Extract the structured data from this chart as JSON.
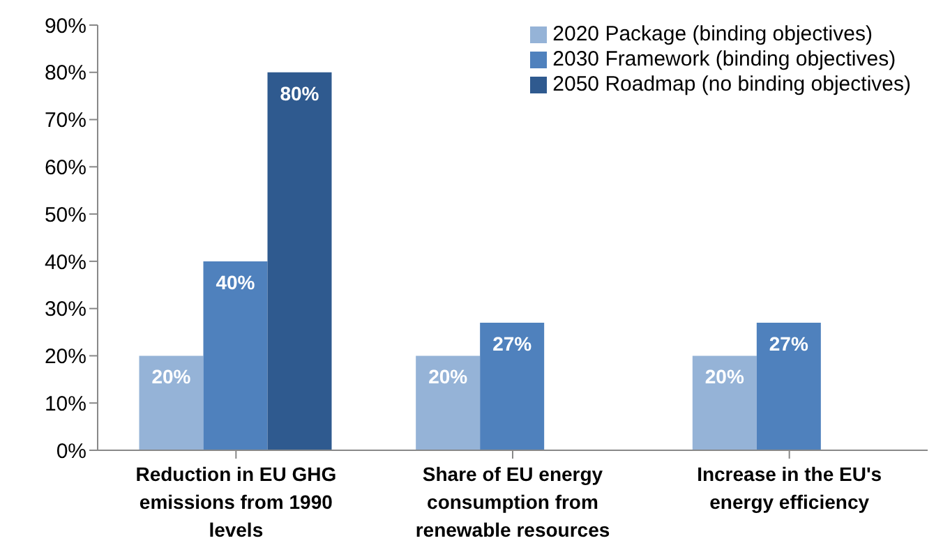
{
  "chart_data": {
    "type": "bar",
    "categories": [
      "Reduction in EU GHG emissions from 1990 levels",
      "Share of EU energy consumption from renewable resources",
      "Increase in the EU's energy efficiency"
    ],
    "series": [
      {
        "name": "2020 Package (binding objectives)",
        "color": "#95b3d7",
        "values": [
          20,
          20,
          20
        ],
        "value_labels": [
          "20%",
          "20%",
          "20%"
        ]
      },
      {
        "name": "2030 Framework (binding objectives)",
        "color": "#4f81bd",
        "values": [
          40,
          27,
          27
        ],
        "value_labels": [
          "40%",
          "27%",
          "27%"
        ]
      },
      {
        "name": "2050 Roadmap (no binding objectives)",
        "color": "#2f5a8f",
        "values": [
          80,
          null,
          null
        ],
        "value_labels": [
          "80%",
          null,
          null
        ]
      }
    ],
    "ylim": [
      0,
      90
    ],
    "yticks": [
      {
        "value": 0,
        "label": "0%"
      },
      {
        "value": 10,
        "label": "10%"
      },
      {
        "value": 20,
        "label": "20%"
      },
      {
        "value": 30,
        "label": "30%"
      },
      {
        "value": 40,
        "label": "40%"
      },
      {
        "value": 50,
        "label": "50%"
      },
      {
        "value": 60,
        "label": "60%"
      },
      {
        "value": 70,
        "label": "70%"
      },
      {
        "value": 80,
        "label": "80%"
      },
      {
        "value": 90,
        "label": "90%"
      }
    ],
    "grid": false,
    "legend": "top right"
  }
}
